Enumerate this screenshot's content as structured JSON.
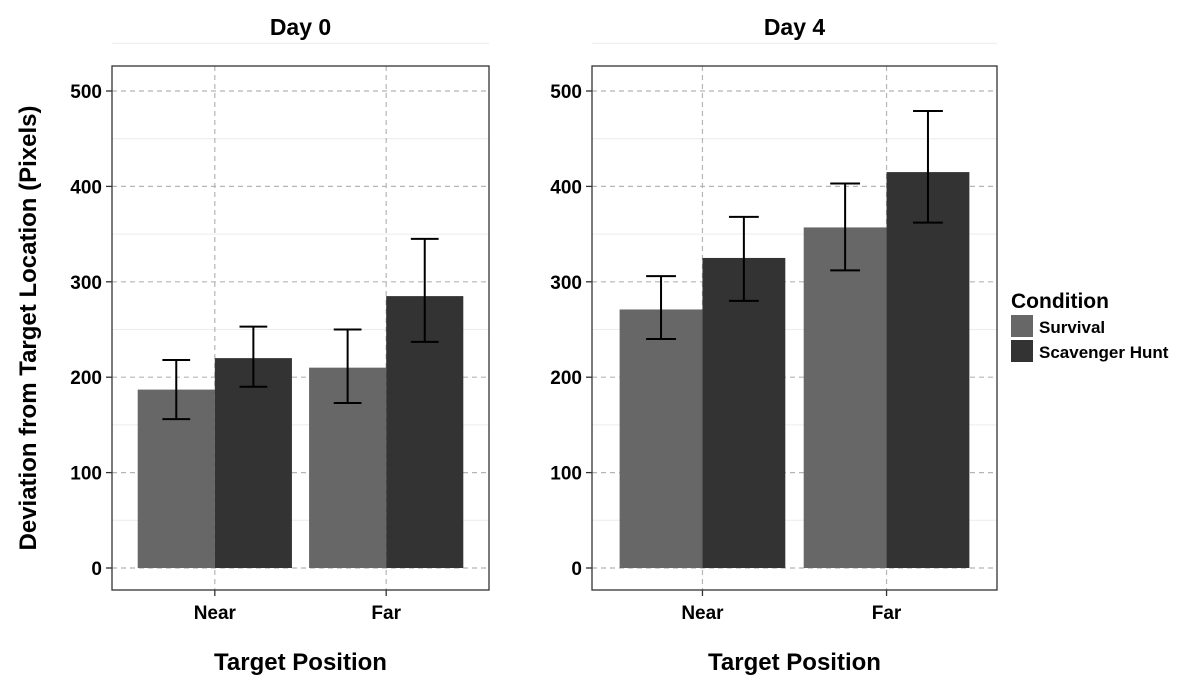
{
  "chart_data": {
    "type": "bar",
    "ylabel": "Deviation from Target Location (Pixels)",
    "xlabel": "Target Position",
    "ylim": [
      0,
      500
    ],
    "yticks": [
      0,
      100,
      200,
      300,
      400,
      500
    ],
    "grid": true,
    "legend": {
      "title": "Condition",
      "placement": "right",
      "entries": [
        {
          "name": "Survival",
          "color": "#676767"
        },
        {
          "name": "Scavenger Hunt",
          "color": "#333333"
        }
      ]
    },
    "panels": [
      {
        "title": "Day 0",
        "categories": [
          "Near",
          "Far"
        ],
        "series": [
          {
            "name": "Survival",
            "values": [
              187,
              210
            ],
            "err_low": [
              156,
              173
            ],
            "err_high": [
              218,
              250
            ]
          },
          {
            "name": "Scavenger Hunt",
            "values": [
              220,
              285
            ],
            "err_low": [
              190,
              237
            ],
            "err_high": [
              253,
              345
            ]
          }
        ]
      },
      {
        "title": "Day 4",
        "categories": [
          "Near",
          "Far"
        ],
        "series": [
          {
            "name": "Survival",
            "values": [
              271,
              357
            ],
            "err_low": [
              240,
              312
            ],
            "err_high": [
              306,
              403
            ]
          },
          {
            "name": "Scavenger Hunt",
            "values": [
              325,
              415
            ],
            "err_low": [
              280,
              362
            ],
            "err_high": [
              368,
              479
            ]
          }
        ]
      }
    ]
  }
}
